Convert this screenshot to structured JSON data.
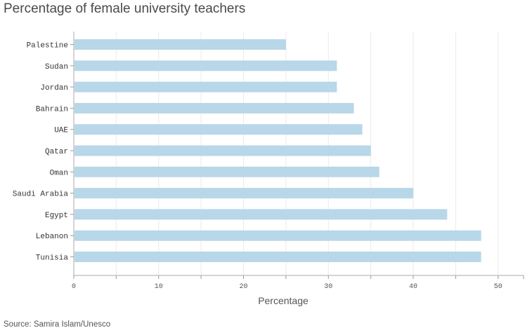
{
  "chart_data": {
    "type": "bar",
    "orientation": "horizontal",
    "title": "Percentage of female university teachers",
    "categories": [
      "Palestine",
      "Sudan",
      "Jordan",
      "Bahrain",
      "UAE",
      "Qatar",
      "Oman",
      "Saudi Arabia",
      "Egypt",
      "Lebanon",
      "Tunisia"
    ],
    "values": [
      25,
      31,
      31,
      33,
      34,
      35,
      36,
      40,
      44,
      48,
      48
    ],
    "xlabel": "Percentage",
    "xlim": [
      0,
      53
    ],
    "xticks": [
      "0",
      "10",
      "20",
      "30",
      "40",
      "50"
    ],
    "grid": true,
    "bar_color": "#b8d7e9"
  },
  "source": "Source: Samira Islam/Unesco"
}
